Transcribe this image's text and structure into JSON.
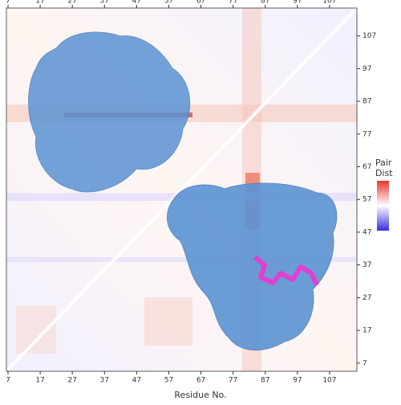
{
  "chart_data": {
    "type": "heatmap",
    "xlabel": "Residue No.",
    "xticks": [
      7,
      17,
      27,
      37,
      47,
      57,
      67,
      77,
      87,
      97,
      107
    ],
    "yticks": [
      7,
      17,
      27,
      37,
      47,
      57,
      67,
      77,
      87,
      97,
      107
    ],
    "xlim": [
      6.5,
      115.5
    ],
    "ylim": [
      4.5,
      115.5
    ],
    "colorbar_label": [
      "Pair",
      "Dist"
    ]
  }
}
